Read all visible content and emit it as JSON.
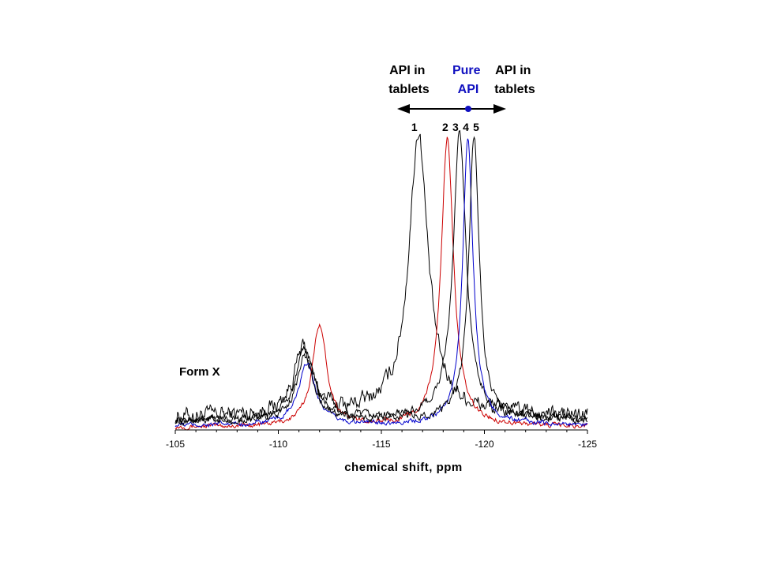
{
  "chart_data": {
    "type": "line",
    "title": "",
    "xlabel": "chemical shift, ppm",
    "ylabel": "",
    "x_axis": {
      "min": -105,
      "max": -125,
      "reversed": true,
      "ticks": [
        "-105",
        "-110",
        "-115",
        "-120",
        "-125"
      ],
      "tick_values": [
        -105,
        -110,
        -115,
        -120,
        -125
      ]
    },
    "y_units": "relative intensity (peak height = 1.0)",
    "annotations": {
      "left_group": "API in\ntablets",
      "center_group": "Pure\nAPI",
      "right_group": "API in\ntablets",
      "form_label": "Form X"
    },
    "series": [
      {
        "name": "1",
        "color": "#000000",
        "main_peak_ppm": -116.8,
        "main_peak_width": 0.55,
        "minor_peak_ppm": -111.2,
        "minor_peak_height": 0.22,
        "minor_peak_width": 0.55,
        "baseline": 0.045,
        "noise": 0.02,
        "tail": 0.02,
        "label_ppm": -116.6
      },
      {
        "name": "2",
        "color": "#cc0000",
        "main_peak_ppm": -118.2,
        "main_peak_width": 0.36,
        "minor_peak_ppm": -112.0,
        "minor_peak_height": 0.35,
        "minor_peak_width": 0.42,
        "baseline": 0.01,
        "noise": 0.006,
        "tail": 0.005,
        "label_ppm": -118.1
      },
      {
        "name": "3",
        "color": "#000000",
        "main_peak_ppm": -118.8,
        "main_peak_width": 0.38,
        "minor_peak_ppm": -111.3,
        "minor_peak_height": 0.24,
        "minor_peak_width": 0.55,
        "baseline": 0.03,
        "noise": 0.01,
        "tail": 0.015,
        "label_ppm": -118.6
      },
      {
        "name": "4",
        "color": "#0000cc",
        "main_peak_ppm": -119.2,
        "main_peak_width": 0.3,
        "minor_peak_ppm": -111.4,
        "minor_peak_height": 0.21,
        "minor_peak_width": 0.5,
        "baseline": 0.015,
        "noise": 0.006,
        "tail": 0.005,
        "label_ppm": -119.1
      },
      {
        "name": "5",
        "color": "#000000",
        "main_peak_ppm": -119.5,
        "main_peak_width": 0.3,
        "minor_peak_ppm": -111.3,
        "minor_peak_height": 0.22,
        "minor_peak_width": 0.5,
        "baseline": 0.03,
        "noise": 0.01,
        "tail": 0.01,
        "label_ppm": -119.6
      }
    ]
  }
}
